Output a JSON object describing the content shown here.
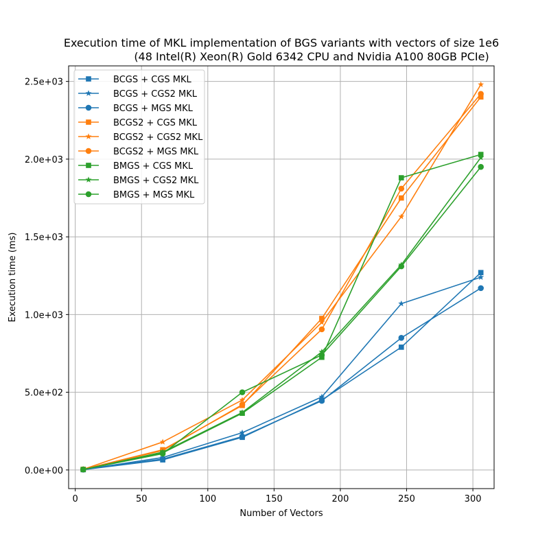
{
  "chart_data": {
    "type": "line",
    "title": "Execution time of MKL implementation of BGS variants with vectors of size 1e6",
    "subtitle": "(48 Intel(R) Xeon(R) Gold 6342 CPU and Nvidia A100 80GB PCIe)",
    "xlabel": "Number of Vectors",
    "ylabel": "Execution time (ms)",
    "xlim": [
      -5,
      316
    ],
    "ylim": [
      -120,
      2600
    ],
    "x_ticks": [
      0,
      50,
      100,
      150,
      200,
      250,
      300
    ],
    "x_tick_labels": [
      "0",
      "50",
      "100",
      "150",
      "200",
      "250",
      "300"
    ],
    "y_ticks": [
      0,
      500,
      1000,
      1500,
      2000,
      2500
    ],
    "y_tick_labels": [
      "0.0e+00",
      "5.0e+02",
      "1.0e+03",
      "1.5e+03",
      "2.0e+03",
      "2.5e+03"
    ],
    "grid": true,
    "legend_position": "top-left",
    "x": [
      6,
      66,
      126,
      186,
      246,
      306
    ],
    "series": [
      {
        "name": "BCGS + CGS MKL",
        "color": "#1f77b4",
        "marker": "square",
        "values": [
          2,
          65,
          210,
          450,
          790,
          1270
        ]
      },
      {
        "name": "BCGS + CGS2 MKL",
        "color": "#1f77b4",
        "marker": "star",
        "values": [
          2,
          80,
          240,
          470,
          1070,
          1240
        ]
      },
      {
        "name": "BCGS + MGS MKL",
        "color": "#1f77b4",
        "marker": "circle",
        "values": [
          2,
          70,
          215,
          445,
          850,
          1170
        ]
      },
      {
        "name": "BCGS2 + CGS MKL",
        "color": "#ff7f0e",
        "marker": "square",
        "values": [
          4,
          130,
          415,
          975,
          1750,
          2400
        ]
      },
      {
        "name": "BCGS2 + CGS2 MKL",
        "color": "#ff7f0e",
        "marker": "star",
        "values": [
          4,
          180,
          450,
          950,
          1630,
          2480
        ]
      },
      {
        "name": "BCGS2 + MGS MKL",
        "color": "#ff7f0e",
        "marker": "circle",
        "values": [
          4,
          125,
          420,
          905,
          1810,
          2420
        ]
      },
      {
        "name": "BMGS + CGS MKL",
        "color": "#2ca02c",
        "marker": "square",
        "values": [
          3,
          110,
          365,
          725,
          1880,
          2030
        ]
      },
      {
        "name": "BMGS + CGS2 MKL",
        "color": "#2ca02c",
        "marker": "star",
        "values": [
          3,
          115,
          370,
          760,
          1320,
          2010
        ]
      },
      {
        "name": "BMGS + MGS MKL",
        "color": "#2ca02c",
        "marker": "circle",
        "values": [
          3,
          105,
          500,
          740,
          1310,
          1950
        ]
      }
    ]
  }
}
